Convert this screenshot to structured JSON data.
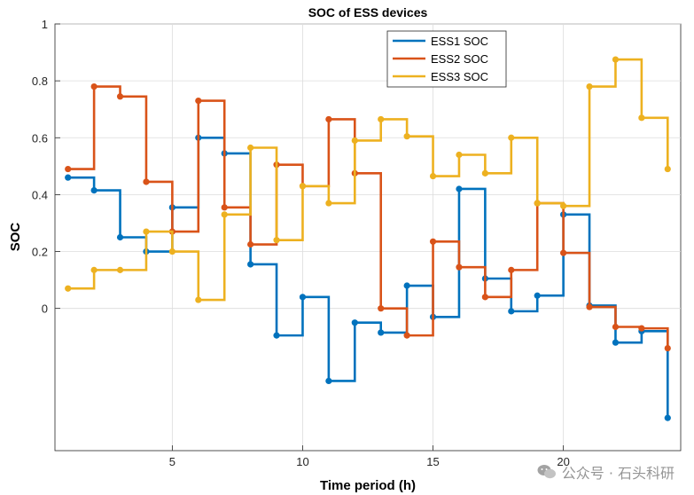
{
  "chart_data": {
    "type": "line",
    "step": "post",
    "title": "SOC of ESS devices",
    "xlabel": "Time period (h)",
    "ylabel": "SOC",
    "xlim": [
      0.5,
      24.5
    ],
    "ylim": [
      -0.5,
      1
    ],
    "xticks": [
      5,
      10,
      15,
      20
    ],
    "yticks": [
      0,
      0.2,
      0.4,
      0.6,
      0.8,
      1
    ],
    "grid": true,
    "legend_position": "top-center",
    "x": [
      1,
      2,
      3,
      4,
      5,
      6,
      7,
      8,
      9,
      10,
      11,
      12,
      13,
      14,
      15,
      16,
      17,
      18,
      19,
      20,
      21,
      22,
      23,
      24
    ],
    "series": [
      {
        "name": "ESS1 SOC",
        "color": "#0072BD",
        "values": [
          0.46,
          0.415,
          0.25,
          0.2,
          0.355,
          0.6,
          0.545,
          0.155,
          -0.095,
          0.04,
          -0.255,
          -0.05,
          -0.085,
          0.08,
          -0.03,
          0.42,
          0.105,
          -0.01,
          0.045,
          0.33,
          0.01,
          -0.12,
          -0.08,
          -0.385
        ]
      },
      {
        "name": "ESS2 SOC",
        "color": "#D95319",
        "values": [
          0.49,
          0.78,
          0.745,
          0.445,
          0.27,
          0.73,
          0.355,
          0.225,
          0.505,
          0.43,
          0.665,
          0.475,
          0,
          -0.095,
          0.235,
          0.145,
          0.04,
          0.135,
          0.37,
          0.195,
          0.005,
          -0.065,
          -0.07,
          -0.14
        ]
      },
      {
        "name": "ESS3 SOC",
        "color": "#EDB120",
        "values": [
          0.07,
          0.135,
          0.135,
          0.27,
          0.2,
          0.03,
          0.33,
          0.565,
          0.24,
          0.43,
          0.37,
          0.59,
          0.665,
          0.605,
          0.465,
          0.54,
          0.475,
          0.6,
          0.37,
          0.36,
          0.78,
          0.875,
          0.67,
          0.49
        ]
      }
    ]
  },
  "watermark": {
    "text": "公众号 · 石头科研",
    "icon": "wechat-icon"
  }
}
